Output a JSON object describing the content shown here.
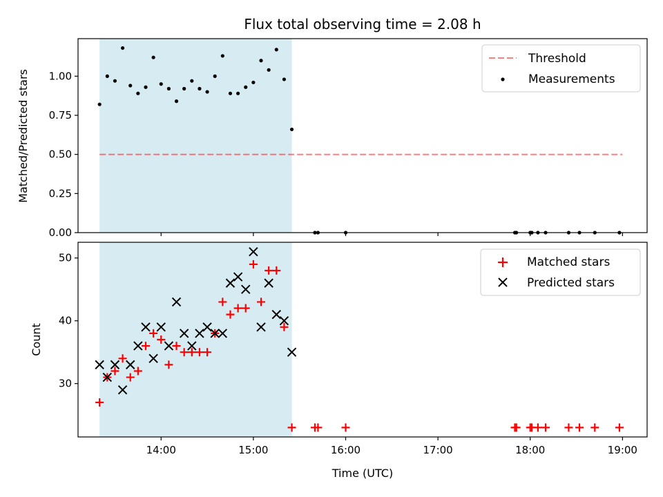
{
  "chart_data": [
    {
      "type": "scatter",
      "title": "Flux total observing time = 2.08 h",
      "xlabel": "",
      "ylabel": "Matched/Predicted stars",
      "xlim": [
        "13:06",
        "19:16"
      ],
      "ylim": [
        0,
        1.24
      ],
      "yticks": [
        0.0,
        0.25,
        0.5,
        0.75,
        1.0
      ],
      "ytick_labels": [
        "0.00",
        "0.25",
        "0.50",
        "0.75",
        "1.00"
      ],
      "shaded_interval": [
        "13:20",
        "15:25"
      ],
      "shade_color": "#add8e6",
      "legend": {
        "position": "top-right",
        "entries": [
          "Threshold",
          "Measurements"
        ]
      },
      "threshold": {
        "name": "Threshold",
        "x": [
          "13:20",
          "19:00"
        ],
        "y": 0.5,
        "color": "#ff0000",
        "style": "dashed"
      },
      "series": [
        {
          "name": "Measurements",
          "marker": "dot",
          "color": "#000000",
          "x": [
            "13:20",
            "13:25",
            "13:30",
            "13:35",
            "13:40",
            "13:45",
            "13:50",
            "13:55",
            "14:00",
            "14:05",
            "14:10",
            "14:15",
            "14:20",
            "14:25",
            "14:30",
            "14:35",
            "14:40",
            "14:45",
            "14:50",
            "14:55",
            "15:00",
            "15:05",
            "15:10",
            "15:15",
            "15:20",
            "15:25",
            "15:40",
            "15:42",
            "16:00",
            "17:50",
            "17:51",
            "18:00",
            "18:01",
            "18:05",
            "18:10",
            "18:25",
            "18:32",
            "18:42",
            "18:58"
          ],
          "y": [
            0.82,
            1.0,
            0.97,
            1.18,
            0.94,
            0.89,
            0.93,
            1.12,
            0.95,
            0.92,
            0.84,
            0.92,
            0.97,
            0.92,
            0.9,
            1.0,
            1.13,
            0.89,
            0.89,
            0.93,
            0.96,
            1.1,
            1.04,
            1.17,
            0.98,
            0.66,
            0,
            0,
            0,
            0,
            0,
            0,
            0,
            0,
            0,
            0,
            0,
            0,
            0
          ]
        }
      ]
    },
    {
      "type": "scatter",
      "title": "",
      "xlabel": "Time (UTC)",
      "ylabel": "Count",
      "xlim": [
        "13:06",
        "19:16"
      ],
      "ylim": [
        21.5,
        52.5
      ],
      "yticks": [
        30,
        40,
        50
      ],
      "ytick_labels": [
        "30",
        "40",
        "50"
      ],
      "xticks": [
        "14:00",
        "15:00",
        "16:00",
        "17:00",
        "18:00",
        "19:00"
      ],
      "xtick_labels": [
        "14:00",
        "15:00",
        "16:00",
        "17:00",
        "18:00",
        "19:00"
      ],
      "shaded_interval": [
        "13:20",
        "15:25"
      ],
      "shade_color": "#add8e6",
      "legend": {
        "position": "top-right",
        "entries": [
          "Matched stars",
          "Predicted stars"
        ]
      },
      "series": [
        {
          "name": "Matched stars",
          "marker": "plus",
          "color": "#ff0000",
          "x": [
            "13:20",
            "13:25",
            "13:30",
            "13:35",
            "13:40",
            "13:45",
            "13:50",
            "13:55",
            "14:00",
            "14:05",
            "14:10",
            "14:15",
            "14:20",
            "14:25",
            "14:30",
            "14:35",
            "14:40",
            "14:45",
            "14:50",
            "14:55",
            "15:00",
            "15:05",
            "15:10",
            "15:15",
            "15:20",
            "15:25",
            "15:40",
            "15:42",
            "16:00",
            "17:50",
            "17:51",
            "18:00",
            "18:01",
            "18:05",
            "18:10",
            "18:25",
            "18:32",
            "18:42",
            "18:58"
          ],
          "y": [
            27,
            31,
            32,
            34,
            31,
            32,
            36,
            38,
            37,
            33,
            36,
            35,
            35,
            35,
            35,
            38,
            43,
            41,
            42,
            42,
            49,
            43,
            48,
            48,
            39,
            23,
            23,
            23,
            23,
            23,
            23,
            23,
            23,
            23,
            23,
            23,
            23,
            23,
            23
          ]
        },
        {
          "name": "Predicted stars",
          "marker": "x",
          "color": "#000000",
          "x": [
            "13:20",
            "13:25",
            "13:30",
            "13:35",
            "13:40",
            "13:45",
            "13:50",
            "13:55",
            "14:00",
            "14:05",
            "14:10",
            "14:15",
            "14:20",
            "14:25",
            "14:30",
            "14:35",
            "14:40",
            "14:45",
            "14:50",
            "14:55",
            "15:00",
            "15:05",
            "15:10",
            "15:15",
            "15:20",
            "15:25"
          ],
          "y": [
            33,
            31,
            33,
            29,
            33,
            36,
            39,
            34,
            39,
            36,
            43,
            38,
            36,
            38,
            39,
            38,
            38,
            46,
            47,
            45,
            51,
            39,
            46,
            41,
            40,
            35
          ]
        }
      ]
    }
  ]
}
